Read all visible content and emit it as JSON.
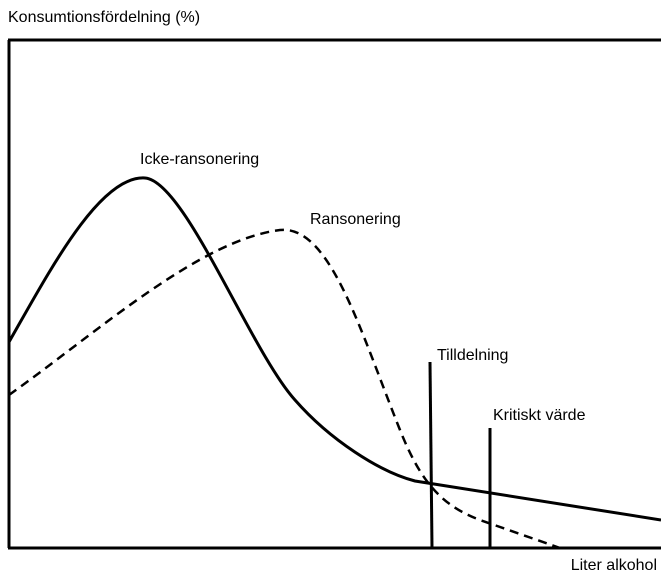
{
  "y_axis_label": "Konsumtionsfördelning (%)",
  "x_axis_label": "Liter alkohol",
  "curves": [
    {
      "label": "Icke-ransonering"
    },
    {
      "label": "Ransonering"
    }
  ],
  "markers": [
    {
      "label": "Tilldelning"
    },
    {
      "label": "Kritiskt värde"
    }
  ]
}
